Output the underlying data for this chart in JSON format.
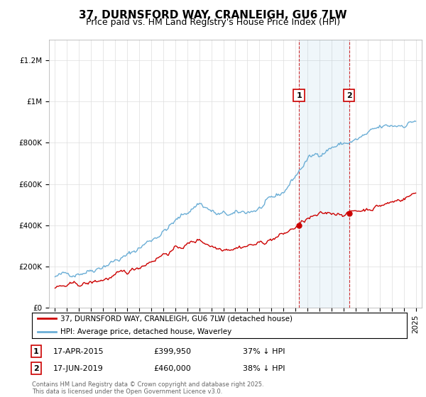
{
  "title": "37, DURNSFORD WAY, CRANLEIGH, GU6 7LW",
  "subtitle": "Price paid vs. HM Land Registry's House Price Index (HPI)",
  "ylim": [
    0,
    1300000
  ],
  "xlim": [
    1994.5,
    2025.5
  ],
  "yticks": [
    0,
    200000,
    400000,
    600000,
    800000,
    1000000,
    1200000
  ],
  "ytick_labels": [
    "£0",
    "£200K",
    "£400K",
    "£600K",
    "£800K",
    "£1M",
    "£1.2M"
  ],
  "xticks": [
    1995,
    1996,
    1997,
    1998,
    1999,
    2000,
    2001,
    2002,
    2003,
    2004,
    2005,
    2006,
    2007,
    2008,
    2009,
    2010,
    2011,
    2012,
    2013,
    2014,
    2015,
    2016,
    2017,
    2018,
    2019,
    2020,
    2021,
    2022,
    2023,
    2024,
    2025
  ],
  "hpi_color": "#6baed6",
  "price_color": "#cc0000",
  "marker1_date": "17-APR-2015",
  "marker1_price": 399950,
  "marker1_hpi_pct": "37% ↓ HPI",
  "marker1_x": 2015.29,
  "marker2_date": "17-JUN-2019",
  "marker2_price": 460000,
  "marker2_hpi_pct": "38% ↓ HPI",
  "marker2_x": 2019.46,
  "legend_line1": "37, DURNSFORD WAY, CRANLEIGH, GU6 7LW (detached house)",
  "legend_line2": "HPI: Average price, detached house, Waverley",
  "footer": "Contains HM Land Registry data © Crown copyright and database right 2025.\nThis data is licensed under the Open Government Licence v3.0.",
  "background_color": "#ffffff",
  "grid_color": "#dddddd",
  "title_fontsize": 11,
  "subtitle_fontsize": 9,
  "tick_fontsize": 7.5
}
